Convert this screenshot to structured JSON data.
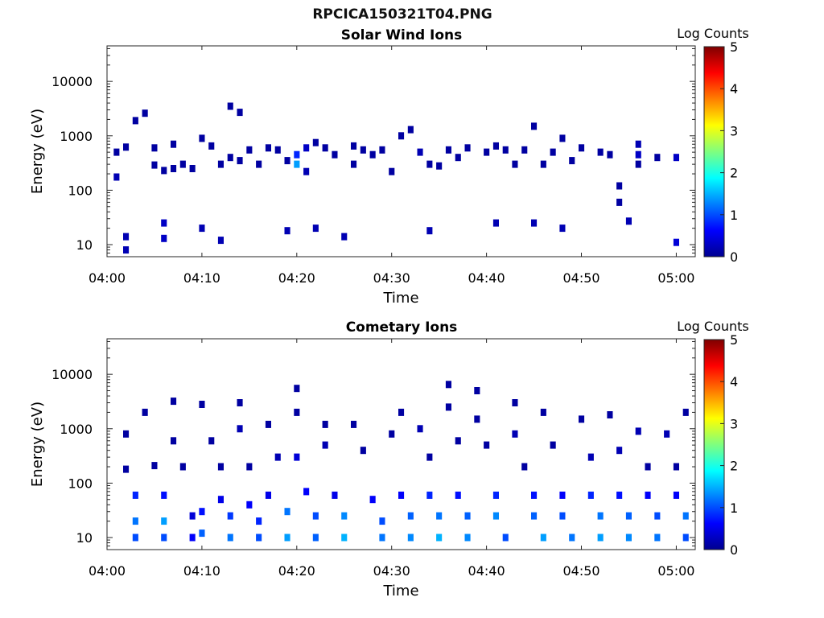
{
  "figure": {
    "title": "RPCICA150321T04.PNG"
  },
  "colormap": {
    "stops": [
      "#00008f",
      "#0000ff",
      "#007fff",
      "#00ffff",
      "#7fff7f",
      "#ffff00",
      "#ff7f00",
      "#ff0000",
      "#7f0000"
    ]
  },
  "chart_data": [
    {
      "type": "heatmap",
      "title": "Solar Wind Ions",
      "xlabel": "Time",
      "ylabel": "Energy (eV)",
      "colorbar_label": "Log Counts",
      "colorbar_ticks": [
        0,
        1,
        2,
        3,
        4,
        5
      ],
      "colorbar_range": [
        0,
        5
      ],
      "xlim": [
        "04:00",
        "05:02"
      ],
      "x_tick_labels": [
        "04:00",
        "04:10",
        "04:20",
        "04:30",
        "04:40",
        "04:50",
        "05:00"
      ],
      "ylim": [
        6,
        45000
      ],
      "yscale": "log",
      "y_tick_labels": [
        "10",
        "100",
        "1000",
        "10000"
      ],
      "cells": [
        [
          "04:01",
          175,
          0.2
        ],
        [
          "04:01",
          500,
          0.1
        ],
        [
          "04:02",
          620,
          0.1
        ],
        [
          "04:02",
          14,
          0.2
        ],
        [
          "04:02",
          8,
          0.2
        ],
        [
          "04:03",
          1900,
          0.1
        ],
        [
          "04:04",
          2600,
          0.1
        ],
        [
          "04:05",
          600,
          0.1
        ],
        [
          "04:05",
          290,
          0.1
        ],
        [
          "04:06",
          230,
          0.1
        ],
        [
          "04:06",
          25,
          0.3
        ],
        [
          "04:06",
          13,
          0.3
        ],
        [
          "04:07",
          700,
          0.1
        ],
        [
          "04:07",
          250,
          0.1
        ],
        [
          "04:08",
          300,
          0.1
        ],
        [
          "04:09",
          250,
          0.1
        ],
        [
          "04:10",
          900,
          0.1
        ],
        [
          "04:10",
          20,
          0.2
        ],
        [
          "04:11",
          650,
          0.1
        ],
        [
          "04:12",
          300,
          0.1
        ],
        [
          "04:12",
          12,
          0.2
        ],
        [
          "04:13",
          3500,
          0.1
        ],
        [
          "04:13",
          400,
          0.1
        ],
        [
          "04:14",
          2700,
          0.1
        ],
        [
          "04:14",
          350,
          0.1
        ],
        [
          "04:15",
          550,
          0.1
        ],
        [
          "04:16",
          300,
          0.1
        ],
        [
          "04:17",
          600,
          0.1
        ],
        [
          "04:18",
          550,
          0.1
        ],
        [
          "04:19",
          350,
          0.1
        ],
        [
          "04:19",
          18,
          0.2
        ],
        [
          "04:20",
          450,
          0.8
        ],
        [
          "04:20",
          300,
          1.4
        ],
        [
          "04:21",
          600,
          0.3
        ],
        [
          "04:21",
          220,
          0.2
        ],
        [
          "04:22",
          750,
          0.1
        ],
        [
          "04:22",
          20,
          0.2
        ],
        [
          "04:23",
          600,
          0.1
        ],
        [
          "04:24",
          450,
          0.1
        ],
        [
          "04:25",
          14,
          0.2
        ],
        [
          "04:26",
          650,
          0.1
        ],
        [
          "04:26",
          300,
          0.1
        ],
        [
          "04:27",
          550,
          0.1
        ],
        [
          "04:28",
          450,
          0.1
        ],
        [
          "04:29",
          550,
          0.1
        ],
        [
          "04:30",
          220,
          0.1
        ],
        [
          "04:31",
          1000,
          0.1
        ],
        [
          "04:32",
          1300,
          0.1
        ],
        [
          "04:33",
          500,
          0.2
        ],
        [
          "04:34",
          300,
          0.1
        ],
        [
          "04:34",
          18,
          0.2
        ],
        [
          "04:35",
          280,
          0.1
        ],
        [
          "04:36",
          550,
          0.1
        ],
        [
          "04:37",
          400,
          0.1
        ],
        [
          "04:38",
          600,
          0.1
        ],
        [
          "04:40",
          500,
          0.1
        ],
        [
          "04:41",
          650,
          0.1
        ],
        [
          "04:41",
          25,
          0.2
        ],
        [
          "04:42",
          550,
          0.1
        ],
        [
          "04:43",
          300,
          0.1
        ],
        [
          "04:44",
          550,
          0.1
        ],
        [
          "04:45",
          1500,
          0.1
        ],
        [
          "04:45",
          25,
          0.2
        ],
        [
          "04:46",
          300,
          0.1
        ],
        [
          "04:47",
          500,
          0.1
        ],
        [
          "04:48",
          20,
          0.2
        ],
        [
          "04:48",
          900,
          0.1
        ],
        [
          "04:49",
          350,
          0.1
        ],
        [
          "04:50",
          600,
          0.1
        ],
        [
          "04:52",
          500,
          0.1
        ],
        [
          "04:53",
          450,
          0.1
        ],
        [
          "04:54",
          120,
          0.1
        ],
        [
          "04:54",
          60,
          0.1
        ],
        [
          "04:55",
          27,
          0.2
        ],
        [
          "04:56",
          700,
          0.2
        ],
        [
          "04:56",
          450,
          0.3
        ],
        [
          "04:56",
          300,
          0.1
        ],
        [
          "04:58",
          400,
          0.1
        ],
        [
          "05:00",
          400,
          0.3
        ],
        [
          "05:00",
          11,
          0.4
        ]
      ]
    },
    {
      "type": "heatmap",
      "title": "Cometary Ions",
      "xlabel": "Time",
      "ylabel": "Energy (eV)",
      "colorbar_label": "Log Counts",
      "colorbar_ticks": [
        0,
        1,
        2,
        3,
        4,
        5
      ],
      "colorbar_range": [
        0,
        5
      ],
      "xlim": [
        "04:00",
        "05:02"
      ],
      "x_tick_labels": [
        "04:00",
        "04:10",
        "04:20",
        "04:30",
        "04:40",
        "04:50",
        "05:00"
      ],
      "ylim": [
        6,
        45000
      ],
      "yscale": "log",
      "y_tick_labels": [
        "10",
        "100",
        "1000",
        "10000"
      ],
      "cells": [
        [
          "04:02",
          800,
          0.1
        ],
        [
          "04:02",
          180,
          0.1
        ],
        [
          "04:03",
          60,
          0.8
        ],
        [
          "04:03",
          20,
          1.2
        ],
        [
          "04:03",
          10,
          1.0
        ],
        [
          "04:04",
          2000,
          0.1
        ],
        [
          "04:05",
          210,
          0.1
        ],
        [
          "04:06",
          60,
          0.7
        ],
        [
          "04:06",
          20,
          1.4
        ],
        [
          "04:06",
          10,
          1.0
        ],
        [
          "04:07",
          3200,
          0.1
        ],
        [
          "04:07",
          600,
          0.1
        ],
        [
          "04:08",
          200,
          0.1
        ],
        [
          "04:09",
          25,
          0.4
        ],
        [
          "04:09",
          10,
          0.6
        ],
        [
          "04:10",
          2800,
          0.1
        ],
        [
          "04:10",
          30,
          0.7
        ],
        [
          "04:10",
          12,
          1.1
        ],
        [
          "04:11",
          600,
          0.1
        ],
        [
          "04:12",
          200,
          0.1
        ],
        [
          "04:12",
          50,
          0.5
        ],
        [
          "04:13",
          25,
          0.9
        ],
        [
          "04:13",
          10,
          1.2
        ],
        [
          "04:14",
          3000,
          0.1
        ],
        [
          "04:14",
          1000,
          0.2
        ],
        [
          "04:15",
          200,
          0.1
        ],
        [
          "04:15",
          40,
          0.6
        ],
        [
          "04:16",
          20,
          0.8
        ],
        [
          "04:16",
          10,
          1.0
        ],
        [
          "04:17",
          1200,
          0.1
        ],
        [
          "04:17",
          60,
          0.5
        ],
        [
          "04:18",
          300,
          0.2
        ],
        [
          "04:19",
          30,
          1.2
        ],
        [
          "04:19",
          10,
          1.4
        ],
        [
          "04:20",
          5500,
          0.1
        ],
        [
          "04:20",
          2000,
          0.1
        ],
        [
          "04:20",
          300,
          0.4
        ],
        [
          "04:21",
          70,
          0.6
        ],
        [
          "04:22",
          25,
          1.0
        ],
        [
          "04:22",
          10,
          1.1
        ],
        [
          "04:23",
          1200,
          0.1
        ],
        [
          "04:23",
          500,
          0.2
        ],
        [
          "04:24",
          60,
          0.5
        ],
        [
          "04:25",
          25,
          1.3
        ],
        [
          "04:25",
          10,
          1.5
        ],
        [
          "04:26",
          1200,
          0.1
        ],
        [
          "04:27",
          400,
          0.1
        ],
        [
          "04:28",
          50,
          0.6
        ],
        [
          "04:29",
          20,
          1.0
        ],
        [
          "04:29",
          10,
          1.2
        ],
        [
          "04:30",
          800,
          0.1
        ],
        [
          "04:31",
          2000,
          0.1
        ],
        [
          "04:31",
          60,
          0.6
        ],
        [
          "04:32",
          25,
          1.1
        ],
        [
          "04:32",
          10,
          1.3
        ],
        [
          "04:33",
          1000,
          0.2
        ],
        [
          "04:34",
          300,
          0.1
        ],
        [
          "04:34",
          60,
          0.8
        ],
        [
          "04:35",
          25,
          1.2
        ],
        [
          "04:35",
          10,
          1.5
        ],
        [
          "04:36",
          6500,
          0.1
        ],
        [
          "04:36",
          2500,
          0.1
        ],
        [
          "04:37",
          600,
          0.1
        ],
        [
          "04:37",
          60,
          0.7
        ],
        [
          "04:38",
          25,
          1.1
        ],
        [
          "04:38",
          10,
          1.3
        ],
        [
          "04:39",
          5000,
          0.1
        ],
        [
          "04:39",
          1500,
          0.1
        ],
        [
          "04:40",
          500,
          0.1
        ],
        [
          "04:41",
          60,
          0.8
        ],
        [
          "04:41",
          25,
          1.3
        ],
        [
          "04:42",
          10,
          1.0
        ],
        [
          "04:43",
          3000,
          0.1
        ],
        [
          "04:43",
          800,
          0.2
        ],
        [
          "04:44",
          200,
          0.1
        ],
        [
          "04:45",
          60,
          0.7
        ],
        [
          "04:45",
          25,
          1.1
        ],
        [
          "04:46",
          10,
          1.4
        ],
        [
          "04:46",
          2000,
          0.1
        ],
        [
          "04:47",
          500,
          0.1
        ],
        [
          "04:48",
          60,
          0.6
        ],
        [
          "04:48",
          25,
          1.0
        ],
        [
          "04:49",
          10,
          1.2
        ],
        [
          "04:50",
          1500,
          0.1
        ],
        [
          "04:51",
          300,
          0.2
        ],
        [
          "04:51",
          60,
          0.8
        ],
        [
          "04:52",
          25,
          1.2
        ],
        [
          "04:52",
          10,
          1.4
        ],
        [
          "04:53",
          1800,
          0.1
        ],
        [
          "04:54",
          400,
          0.2
        ],
        [
          "04:54",
          60,
          0.7
        ],
        [
          "04:55",
          25,
          1.1
        ],
        [
          "04:55",
          10,
          1.3
        ],
        [
          "04:56",
          900,
          0.2
        ],
        [
          "04:57",
          200,
          0.1
        ],
        [
          "04:57",
          60,
          0.6
        ],
        [
          "04:58",
          25,
          1.0
        ],
        [
          "04:58",
          10,
          1.2
        ],
        [
          "04:59",
          800,
          0.2
        ],
        [
          "05:00",
          200,
          0.1
        ],
        [
          "05:00",
          60,
          0.6
        ],
        [
          "05:01",
          25,
          1.2
        ],
        [
          "05:01",
          10,
          1.0
        ],
        [
          "05:01",
          2000,
          0.1
        ]
      ]
    }
  ]
}
